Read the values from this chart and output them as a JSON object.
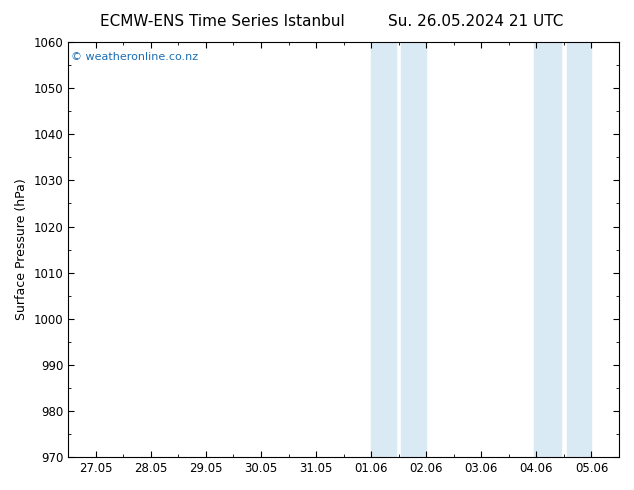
{
  "title_left": "ECMW-ENS Time Series Istanbul",
  "title_right": "Su. 26.05.2024 21 UTC",
  "ylabel": "Surface Pressure (hPa)",
  "ylim": [
    970,
    1060
  ],
  "yticks": [
    970,
    980,
    990,
    1000,
    1010,
    1020,
    1030,
    1040,
    1050,
    1060
  ],
  "x_labels": [
    "27.05",
    "28.05",
    "29.05",
    "30.05",
    "31.05",
    "01.06",
    "02.06",
    "03.06",
    "04.06",
    "05.06"
  ],
  "x_positions": [
    0,
    1,
    2,
    3,
    4,
    5,
    6,
    7,
    8,
    9
  ],
  "xlim": [
    -0.5,
    9.5
  ],
  "background_color": "#ffffff",
  "plot_bg_color": "#ffffff",
  "shaded_regions": [
    {
      "xmin": 5.0,
      "xmax": 5.45
    },
    {
      "xmin": 5.55,
      "xmax": 6.0
    },
    {
      "xmin": 7.95,
      "xmax": 8.45
    },
    {
      "xmin": 8.55,
      "xmax": 9.0
    }
  ],
  "watermark": "© weatheronline.co.nz",
  "watermark_color": "#1a6eb5",
  "title_fontsize": 11,
  "label_fontsize": 9,
  "tick_fontsize": 8.5,
  "shading_color": "#daeaf5",
  "border_color": "#000000"
}
